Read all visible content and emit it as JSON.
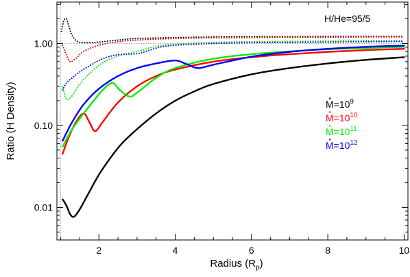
{
  "chart_data": {
    "type": "line",
    "title": "",
    "annotation": "H/He=95/5",
    "xlabel": "Radius (R",
    "xlabel_sub": "p",
    "xlabel_close": ")",
    "ylabel": "Ratio (H Density)",
    "xlim": [
      0.9,
      10.1
    ],
    "ylim": [
      0.004,
      3.2
    ],
    "yscale": "log",
    "grid": false,
    "x_ticks": [
      2,
      4,
      6,
      8,
      10
    ],
    "x_tick_labels": [
      "2",
      "4",
      "6",
      "8",
      "10"
    ],
    "y_ticks": [
      0.01,
      0.1,
      1.0
    ],
    "y_tick_labels": [
      "0.01",
      "0.10",
      "1.00"
    ],
    "reference_lines": [
      {
        "axis": "y",
        "value": 1.0,
        "style": "dotted",
        "color": "#999999"
      },
      {
        "axis": "x",
        "value": 1.0,
        "style": "dotted",
        "color": "#999999"
      }
    ],
    "legend_position": "right-middle",
    "legend": [
      {
        "base": "M=10",
        "exp": "9",
        "color": "#000000"
      },
      {
        "base": "M=10",
        "exp": "10",
        "color": "#ff0000"
      },
      {
        "base": "M=10",
        "exp": "11",
        "color": "#00ee00"
      },
      {
        "base": "M=10",
        "exp": "12",
        "color": "#0000ff"
      }
    ],
    "series": [
      {
        "color": "#000000",
        "style": "solid",
        "x": [
          1.05,
          1.15,
          1.25,
          1.35,
          1.5,
          1.7,
          2.0,
          2.3,
          2.6,
          3.0,
          3.5,
          4.0,
          4.5,
          5.0,
          6.0,
          7.0,
          8.0,
          9.0,
          10.0
        ],
        "y": [
          0.0125,
          0.0105,
          0.0082,
          0.0077,
          0.0095,
          0.014,
          0.025,
          0.04,
          0.06,
          0.09,
          0.14,
          0.2,
          0.26,
          0.32,
          0.42,
          0.5,
          0.57,
          0.63,
          0.68
        ]
      },
      {
        "color": "#ff0000",
        "style": "solid",
        "x": [
          1.05,
          1.2,
          1.4,
          1.6,
          1.75,
          1.9,
          2.1,
          2.5,
          3.0,
          3.5,
          4.0,
          5.0,
          6.0,
          7.0,
          8.0,
          9.0,
          10.0
        ],
        "y": [
          0.045,
          0.07,
          0.11,
          0.14,
          0.11,
          0.085,
          0.11,
          0.19,
          0.3,
          0.4,
          0.48,
          0.6,
          0.68,
          0.74,
          0.79,
          0.83,
          0.86
        ]
      },
      {
        "color": "#00ee00",
        "style": "solid",
        "x": [
          1.05,
          1.3,
          1.6,
          1.9,
          2.1,
          2.35,
          2.55,
          2.8,
          3.0,
          3.5,
          4.0,
          5.0,
          6.0,
          7.0,
          8.0,
          9.0,
          10.0
        ],
        "y": [
          0.055,
          0.09,
          0.14,
          0.21,
          0.27,
          0.33,
          0.27,
          0.225,
          0.25,
          0.38,
          0.5,
          0.65,
          0.74,
          0.8,
          0.85,
          0.88,
          0.91
        ]
      },
      {
        "color": "#0000ff",
        "style": "solid",
        "x": [
          1.05,
          1.3,
          1.6,
          2.0,
          2.5,
          3.0,
          3.5,
          4.0,
          4.3,
          4.6,
          5.0,
          6.0,
          7.0,
          8.0,
          9.0,
          10.0
        ],
        "y": [
          0.065,
          0.11,
          0.18,
          0.28,
          0.4,
          0.5,
          0.57,
          0.62,
          0.56,
          0.5,
          0.55,
          0.69,
          0.79,
          0.86,
          0.91,
          0.94
        ]
      },
      {
        "color": "#000000",
        "style": "dotted",
        "x": [
          1.02,
          1.08,
          1.15,
          1.2,
          1.3,
          1.45,
          1.7,
          2.0,
          2.5,
          3.0,
          4.0,
          5.0,
          6.0,
          7.0,
          8.0,
          9.0,
          10.0
        ],
        "y": [
          1.4,
          1.9,
          2.0,
          1.7,
          1.25,
          1.05,
          1.02,
          1.04,
          1.1,
          1.15,
          1.18,
          1.2,
          1.21,
          1.21,
          1.22,
          1.22,
          1.22
        ]
      },
      {
        "color": "#ff0000",
        "style": "dotted",
        "x": [
          1.05,
          1.15,
          1.25,
          1.4,
          1.6,
          2.0,
          2.5,
          3.0,
          4.0,
          5.0,
          6.0,
          7.0,
          8.0,
          9.0,
          10.0
        ],
        "y": [
          0.95,
          0.72,
          0.6,
          0.66,
          0.8,
          0.95,
          1.05,
          1.1,
          1.15,
          1.17,
          1.18,
          1.19,
          1.19,
          1.2,
          1.2
        ]
      },
      {
        "color": "#00ee00",
        "style": "dotted",
        "x": [
          1.05,
          1.15,
          1.3,
          1.5,
          1.8,
          2.1,
          2.5,
          3.0,
          3.5,
          4.0,
          5.0,
          6.0,
          7.0,
          8.0,
          9.0,
          10.0
        ],
        "y": [
          0.3,
          0.21,
          0.23,
          0.32,
          0.45,
          0.58,
          0.7,
          0.8,
          0.92,
          0.98,
          1.03,
          1.05,
          1.06,
          1.07,
          1.08,
          1.08
        ]
      },
      {
        "color": "#0000ff",
        "style": "dotted",
        "x": [
          1.05,
          1.15,
          1.3,
          1.5,
          1.8,
          2.1,
          2.5,
          3.0,
          3.3,
          3.6,
          4.0,
          5.0,
          6.0,
          7.0,
          8.0,
          9.0,
          10.0
        ],
        "y": [
          0.27,
          0.33,
          0.38,
          0.45,
          0.55,
          0.65,
          0.73,
          0.75,
          0.82,
          0.9,
          0.95,
          1.0,
          1.02,
          1.03,
          1.04,
          1.05,
          1.06
        ]
      }
    ]
  }
}
